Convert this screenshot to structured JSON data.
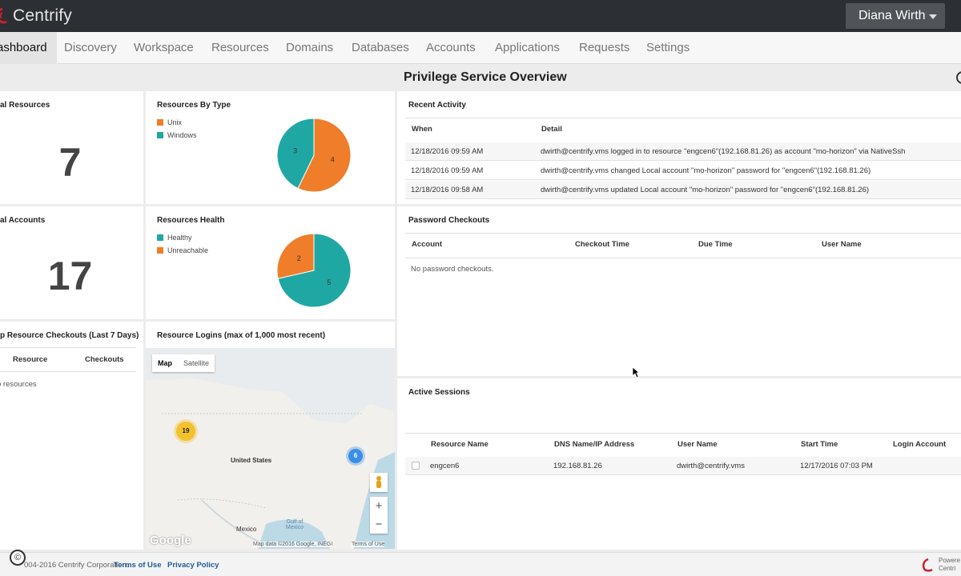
{
  "app": {
    "brand": "Centrify",
    "user": "Diana Wirth"
  },
  "nav": {
    "items": [
      "ashboard",
      "Discovery",
      "Workspace",
      "Resources",
      "Domains",
      "Databases",
      "Accounts",
      "Applications",
      "Requests",
      "Settings"
    ]
  },
  "page": {
    "title": "Privilege Service Overview"
  },
  "total_resources": {
    "title": "al Resources",
    "value": "7"
  },
  "total_accounts": {
    "title": "al Accounts",
    "value": "17"
  },
  "resources_by_type": {
    "title": "Resources By Type",
    "legend": [
      {
        "label": "Unix",
        "color": "#ef7d2a"
      },
      {
        "label": "Windows",
        "color": "#1fa8a3"
      }
    ],
    "chart_data": {
      "type": "pie",
      "slices": [
        {
          "label": "Unix",
          "value": 4,
          "color": "#ef7d2a"
        },
        {
          "label": "Windows",
          "value": 3,
          "color": "#1fa8a3"
        }
      ]
    }
  },
  "resources_health": {
    "title": "Resources Health",
    "legend": [
      {
        "label": "Healthy",
        "color": "#1fa8a3"
      },
      {
        "label": "Unreachable",
        "color": "#ef7d2a"
      }
    ],
    "chart_data": {
      "type": "pie",
      "slices": [
        {
          "label": "Healthy",
          "value": 5,
          "color": "#1fa8a3"
        },
        {
          "label": "Unreachable",
          "value": 2,
          "color": "#ef7d2a"
        }
      ]
    }
  },
  "top_checkouts": {
    "title": "p Resource Checkouts (Last 7 Days)",
    "col_resource": "Resource",
    "col_checkouts": "Checkouts",
    "empty": "o resources"
  },
  "resource_logins": {
    "title": "Resource Logins (max of 1,000 most recent)",
    "map_btn": "Map",
    "satellite_btn": "Satellite",
    "cluster_west": "19",
    "cluster_east": "6",
    "attribution": "Map data ©2016 Google, INEGI",
    "terms": "Terms of Use",
    "google": "Google",
    "labels": {
      "us": "United States",
      "mexico": "Mexico",
      "gulf": "Gulf of Mexico"
    }
  },
  "recent_activity": {
    "title": "Recent Activity",
    "col_when": "When",
    "col_detail": "Detail",
    "rows": [
      {
        "when": "12/18/2016 09:59 AM",
        "detail": "dwirth@centrify.vms logged in to resource \"engcen6\"(192.168.81.26) as account \"mo-horizon\" via NativeSsh"
      },
      {
        "when": "12/18/2016 09:59 AM",
        "detail": "dwirth@centrify.vms changed Local account \"mo-horizon\" password for \"engcen6\"(192.168.81.26)"
      },
      {
        "when": "12/18/2016 09:58 AM",
        "detail": "dwirth@centrify.vms updated Local account \"mo-horizon\" password for \"engcen6\"(192.168.81.26)"
      }
    ]
  },
  "password_checkouts": {
    "title": "Password Checkouts",
    "cols": [
      "Account",
      "Checkout Time",
      "Due Time",
      "User Name"
    ],
    "empty": "No password checkouts."
  },
  "active_sessions": {
    "title": "Active Sessions",
    "cols": [
      "Resource Name",
      "DNS Name/IP Address",
      "User Name",
      "Start Time",
      "Login Account"
    ],
    "rows": [
      {
        "resource": "engcen6",
        "dns": "192.168.81.26",
        "user": "dwirth@centrify.vms",
        "start": "12/17/2016 07:03 PM",
        "login": ""
      }
    ]
  },
  "footer": {
    "copyright": "004-2016 Centrify Corporation.",
    "terms": "Terms of Use",
    "privacy": "Privacy Policy",
    "powered": "Powere",
    "powered2": "Centri"
  }
}
